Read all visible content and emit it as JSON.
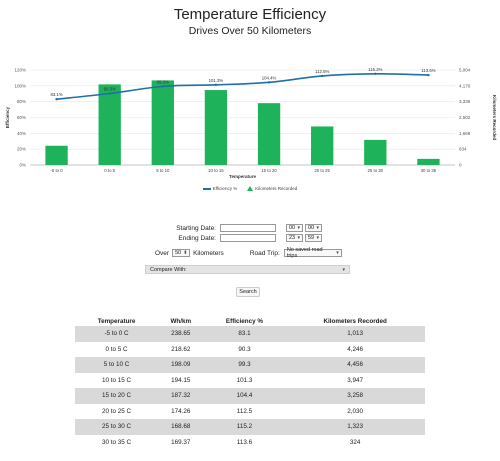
{
  "page": {
    "title": "Temperature Efficiency",
    "subtitle": "Drives Over 50 Kilometers"
  },
  "colors": {
    "bar": "#1eb35a",
    "line": "#1f6fa8",
    "grid": "#e6e6e6",
    "row_alt": "#d9d9d9"
  },
  "chart_data": {
    "type": "bar+line",
    "categories": [
      "-5 to 0",
      "0 to 5",
      "5 to 10",
      "10 to 15",
      "15 to 20",
      "20 to 25",
      "25 to 30",
      "30 to 35"
    ],
    "xlabel": "Temperature",
    "ylabel_left": "Efficiency",
    "ylabel_right": "Kilometers Recorded",
    "left_ticks": [
      "0%",
      "20%",
      "40%",
      "60%",
      "80%",
      "100%",
      "120%"
    ],
    "right_ticks": [
      "0",
      "834",
      "1,668",
      "2,502",
      "3,336",
      "4,170",
      "5,004"
    ],
    "ylim_left": [
      0,
      120
    ],
    "ylim_right": [
      0,
      5004
    ],
    "series": [
      {
        "name": "Efficiency %",
        "type": "line",
        "axis": "left",
        "values": [
          83.1,
          90.3,
          99.3,
          101.3,
          104.4,
          112.5,
          115.2,
          113.6
        ],
        "labels": [
          "83.1%",
          "90.3%",
          "99.3%",
          "101.3%",
          "104.4%",
          "112.5%",
          "115.2%",
          "113.6%"
        ]
      },
      {
        "name": "Kilometers Recorded",
        "type": "bar",
        "axis": "right",
        "values": [
          1013,
          4246,
          4456,
          3947,
          3258,
          2030,
          1323,
          324
        ]
      }
    ],
    "legend": "bottom-center"
  },
  "form": {
    "starting_label": "Starting Date:",
    "ending_label": "Ending Date:",
    "start_hour": "00",
    "start_min": "00",
    "end_hour": "23",
    "end_min": "59",
    "over_label": "Over",
    "km_value": "50",
    "km_label": "Kilometers",
    "road_trip_label": "Road Trip:",
    "road_trip_value": "No saved road trips",
    "compare_value": "Compare With:",
    "search_label": "Search"
  },
  "table": {
    "headers": [
      "Temperature",
      "Wh/km",
      "Efficiency %",
      "Kilometers Recorded"
    ],
    "rows": [
      [
        "-5 to 0 C",
        "238.65",
        "83.1",
        "1,013"
      ],
      [
        "0 to 5 C",
        "218.62",
        "90.3",
        "4,246"
      ],
      [
        "5 to 10 C",
        "198.09",
        "99.3",
        "4,456"
      ],
      [
        "10 to 15 C",
        "194.15",
        "101.3",
        "3,947"
      ],
      [
        "15 to 20 C",
        "187.32",
        "104.4",
        "3,258"
      ],
      [
        "20 to 25 C",
        "174.26",
        "112.5",
        "2,030"
      ],
      [
        "25 to 30 C",
        "168.68",
        "115.2",
        "1,323"
      ],
      [
        "30 to 35 C",
        "169.37",
        "113.6",
        "324"
      ]
    ]
  }
}
